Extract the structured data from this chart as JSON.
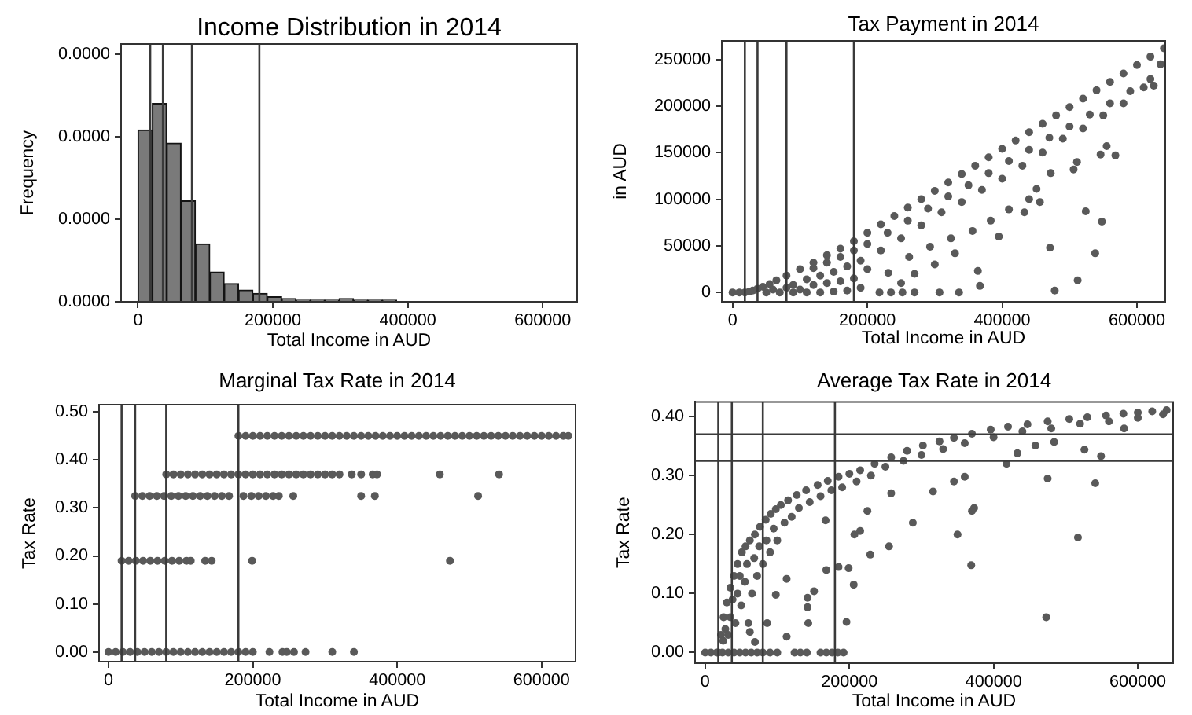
{
  "chart_data": [
    {
      "type": "histogram",
      "title": "Income Distribution in 2014",
      "xlabel": "Total Income in AUD",
      "ylabel": "Frequency",
      "color": "#7a7a7a",
      "bins": [
        0,
        21300,
        42600,
        63900,
        85200,
        106500,
        127800,
        149100,
        170400,
        191700,
        213000,
        234300,
        255600,
        276900,
        298200,
        319500,
        340800,
        362100,
        383400,
        404700,
        426000,
        447300,
        468600,
        489900,
        511200,
        532500,
        553800,
        575100,
        596400,
        617700,
        639000
      ],
      "values": [
        1.04e-05,
        1.2e-05,
        9.6e-06,
        6.1e-06,
        3.5e-06,
        1.8e-06,
        1.1e-06,
        7e-07,
        5e-07,
        3e-07,
        2e-07,
        1e-07,
        1e-07,
        1e-07,
        2e-07,
        1e-07,
        1e-07,
        1e-07,
        0,
        0,
        0,
        0,
        0,
        0,
        0,
        0,
        0,
        0,
        0,
        0
      ],
      "xlim": [
        -25000,
        651000
      ],
      "ylim": [
        0,
        1.56e-05
      ],
      "xticks": [
        0,
        200000,
        400000,
        600000
      ],
      "yticks": [
        {
          "value": 0,
          "label": "0.0000"
        },
        {
          "value": 5e-06,
          "label": "0.0000"
        },
        {
          "value": 1e-05,
          "label": "0.0000"
        },
        {
          "value": 1.5e-05,
          "label": "0.0000"
        }
      ],
      "ref_lines": [
        {
          "axis": "x",
          "value": 18200,
          "color": "#3a3a3a"
        },
        {
          "axis": "x",
          "value": 37000,
          "color": "#3a3a3a"
        },
        {
          "axis": "x",
          "value": 80000,
          "color": "#3a3a3a"
        },
        {
          "axis": "x",
          "value": 180000,
          "color": "#3a3a3a"
        }
      ]
    },
    {
      "type": "scatter",
      "title": "Tax Payment in 2014",
      "xlabel": "Total Income in AUD",
      "ylabel": "in AUD",
      "color": "#595959",
      "marker": "circle",
      "x": [
        0,
        10000,
        18200,
        25000,
        30000,
        37000,
        45000,
        55000,
        65000,
        80000,
        100000,
        120000,
        140000,
        160000,
        180000,
        200000,
        220000,
        240000,
        260000,
        280000,
        300000,
        320000,
        340000,
        360000,
        380000,
        400000,
        420000,
        440000,
        460000,
        480000,
        500000,
        520000,
        540000,
        560000,
        580000,
        600000,
        620000,
        640000,
        120000,
        140000,
        160000,
        180000,
        200000,
        230000,
        260000,
        290000,
        320000,
        350000,
        380000,
        410000,
        440000,
        470000,
        500000,
        530000,
        560000,
        590000,
        620000,
        635000,
        90000,
        110000,
        130000,
        150000,
        170000,
        190000,
        220000,
        250000,
        280000,
        310000,
        340000,
        370000,
        400000,
        430000,
        460000,
        490000,
        520000,
        550000,
        580000,
        610000,
        60000,
        80000,
        100000,
        120000,
        140000,
        160000,
        180000,
        200000,
        190000,
        170000,
        150000,
        130000,
        110000,
        90000,
        70000,
        50000,
        218000,
        235000,
        252000,
        270000,
        307000,
        336000,
        231000,
        262000,
        293000,
        324000,
        356000,
        383000,
        410000,
        440000,
        471000,
        478000,
        512000,
        524000,
        548000,
        538000,
        555000,
        546000,
        568000,
        625000,
        511000,
        506000,
        451000,
        456000,
        472000,
        433000,
        364000,
        367000,
        395000,
        300000,
        330000,
        270000,
        250000
      ],
      "values": [
        0,
        0,
        0,
        1000,
        2000,
        4000,
        6000,
        9000,
        13000,
        18000,
        25000,
        32000,
        40000,
        47000,
        55000,
        64000,
        73000,
        82000,
        91000,
        100000,
        109000,
        118000,
        127000,
        136000,
        145000,
        154000,
        163000,
        172000,
        181000,
        190000,
        199000,
        208000,
        217000,
        226000,
        235000,
        244000,
        253000,
        262000,
        26000,
        32000,
        38000,
        45000,
        52000,
        64000,
        77000,
        90000,
        103000,
        115000,
        128000,
        141000,
        153000,
        166000,
        178000,
        191000,
        203000,
        216000,
        229000,
        245000,
        8000,
        14000,
        18000,
        22000,
        28000,
        34000,
        45000,
        58000,
        72000,
        86000,
        97000,
        110000,
        122000,
        136000,
        150000,
        165000,
        176000,
        190000,
        203000,
        220000,
        3000,
        5000,
        3000,
        8000,
        10000,
        12000,
        15000,
        25000,
        5000,
        2000,
        1000,
        0,
        0,
        0,
        0,
        0,
        0,
        0,
        0,
        0,
        0,
        0,
        21000,
        38000,
        49000,
        58000,
        66000,
        77000,
        89000,
        100000,
        48000,
        2000,
        13000,
        87000,
        76000,
        42000,
        157000,
        148000,
        147000,
        222000,
        140000,
        132000,
        111000,
        97000,
        128000,
        86000,
        23000,
        7000,
        60000,
        30000,
        42000,
        20000,
        10000
      ],
      "xlim": [
        -16000,
        642000
      ],
      "ylim": [
        -10000,
        270000
      ],
      "xticks": [
        0,
        200000,
        400000,
        600000
      ],
      "yticks": [
        0,
        50000,
        100000,
        150000,
        200000,
        250000
      ],
      "ref_lines": [
        {
          "axis": "x",
          "value": 18200,
          "color": "#3a3a3a"
        },
        {
          "axis": "x",
          "value": 37000,
          "color": "#3a3a3a"
        },
        {
          "axis": "x",
          "value": 80000,
          "color": "#3a3a3a"
        },
        {
          "axis": "x",
          "value": 180000,
          "color": "#3a3a3a"
        }
      ]
    },
    {
      "type": "scatter",
      "title": "Marginal Tax Rate in 2014",
      "xlabel": "Total Income in AUD",
      "ylabel": "Tax Rate",
      "color": "#595959",
      "marker": "circle",
      "x": [
        0,
        10000,
        20000,
        30000,
        40000,
        50000,
        60000,
        70000,
        80000,
        90000,
        100000,
        110000,
        120000,
        130000,
        140000,
        150000,
        160000,
        170000,
        180000,
        190000,
        200000,
        223000,
        241000,
        247000,
        257000,
        273000,
        310000,
        340000,
        18200,
        28000,
        38000,
        48000,
        58000,
        68000,
        78000,
        88000,
        98000,
        108000,
        114000,
        134000,
        143000,
        199000,
        473000,
        37000,
        47000,
        57000,
        67000,
        77000,
        87000,
        97000,
        107000,
        117000,
        127000,
        137000,
        147000,
        157000,
        167000,
        187000,
        198000,
        208000,
        218000,
        228000,
        236000,
        256000,
        350000,
        369000,
        512000,
        80000,
        90000,
        100000,
        110000,
        120000,
        130000,
        140000,
        150000,
        160000,
        170000,
        180000,
        190000,
        200000,
        210000,
        220000,
        230000,
        240000,
        250000,
        260000,
        270000,
        280000,
        290000,
        300000,
        310000,
        320000,
        337000,
        350000,
        366000,
        372000,
        459000,
        541000,
        180000,
        190000,
        200000,
        210000,
        220000,
        230000,
        240000,
        250000,
        260000,
        270000,
        280000,
        290000,
        300000,
        310000,
        320000,
        330000,
        340000,
        350000,
        360000,
        370000,
        380000,
        390000,
        400000,
        410000,
        420000,
        430000,
        440000,
        450000,
        460000,
        470000,
        480000,
        490000,
        500000,
        510000,
        520000,
        530000,
        540000,
        550000,
        560000,
        570000,
        580000,
        590000,
        600000,
        610000,
        620000,
        630000,
        637000
      ],
      "values": [
        0,
        0,
        0,
        0,
        0,
        0,
        0,
        0,
        0,
        0,
        0,
        0,
        0,
        0,
        0,
        0,
        0,
        0,
        0,
        0,
        0,
        0,
        0,
        0,
        0,
        0,
        0,
        0,
        0.19,
        0.19,
        0.19,
        0.19,
        0.19,
        0.19,
        0.19,
        0.19,
        0.19,
        0.19,
        0.19,
        0.19,
        0.19,
        0.19,
        0.19,
        0.325,
        0.325,
        0.325,
        0.325,
        0.325,
        0.325,
        0.325,
        0.325,
        0.325,
        0.325,
        0.325,
        0.325,
        0.325,
        0.325,
        0.325,
        0.325,
        0.325,
        0.325,
        0.325,
        0.325,
        0.325,
        0.325,
        0.325,
        0.325,
        0.37,
        0.37,
        0.37,
        0.37,
        0.37,
        0.37,
        0.37,
        0.37,
        0.37,
        0.37,
        0.37,
        0.37,
        0.37,
        0.37,
        0.37,
        0.37,
        0.37,
        0.37,
        0.37,
        0.37,
        0.37,
        0.37,
        0.37,
        0.37,
        0.37,
        0.37,
        0.37,
        0.37,
        0.37,
        0.37,
        0.37,
        0.45,
        0.45,
        0.45,
        0.45,
        0.45,
        0.45,
        0.45,
        0.45,
        0.45,
        0.45,
        0.45,
        0.45,
        0.45,
        0.45,
        0.45,
        0.45,
        0.45,
        0.45,
        0.45,
        0.45,
        0.45,
        0.45,
        0.45,
        0.45,
        0.45,
        0.45,
        0.45,
        0.45,
        0.45,
        0.45,
        0.45,
        0.45,
        0.45,
        0.45,
        0.45,
        0.45,
        0.45,
        0.45,
        0.45,
        0.45,
        0.45,
        0.45,
        0.45,
        0.45,
        0.45,
        0.45,
        0.45
      ],
      "xlim": [
        -13000,
        647000
      ],
      "ylim": [
        -0.02,
        0.515
      ],
      "xticks": [
        0,
        200000,
        400000,
        600000
      ],
      "yticks": [
        {
          "value": 0,
          "label": "0.00"
        },
        {
          "value": 0.1,
          "label": "0.10"
        },
        {
          "value": 0.2,
          "label": "0.20"
        },
        {
          "value": 0.3,
          "label": "0.30"
        },
        {
          "value": 0.4,
          "label": "0.40"
        },
        {
          "value": 0.5,
          "label": "0.50"
        }
      ],
      "ref_lines": [
        {
          "axis": "x",
          "value": 18200,
          "color": "#3a3a3a"
        },
        {
          "axis": "x",
          "value": 37000,
          "color": "#3a3a3a"
        },
        {
          "axis": "x",
          "value": 80000,
          "color": "#3a3a3a"
        },
        {
          "axis": "x",
          "value": 180000,
          "color": "#3a3a3a"
        }
      ]
    },
    {
      "type": "scatter",
      "title": "Average Tax Rate in 2014",
      "xlabel": "Total Income in AUD",
      "ylabel": "Tax Rate",
      "color": "#595959",
      "marker": "circle",
      "x": [
        18200,
        22000,
        25500,
        30000,
        35000,
        40000,
        45000,
        51000,
        56000,
        62000,
        69000,
        76000,
        84000,
        91000,
        98000,
        105000,
        115000,
        127000,
        140000,
        156000,
        170000,
        185000,
        200000,
        215000,
        235000,
        258000,
        280000,
        302000,
        325000,
        345000,
        370000,
        396000,
        420000,
        447000,
        475000,
        505000,
        530000,
        556000,
        580000,
        600000,
        620000,
        640000,
        25000,
        28000,
        32000,
        35000,
        38000,
        42000,
        45000,
        48000,
        50000,
        55000,
        58000,
        60000,
        65000,
        68000,
        72000,
        75000,
        80000,
        85000,
        90000,
        95000,
        100000,
        110000,
        120000,
        130000,
        145000,
        160000,
        175000,
        190000,
        210000,
        230000,
        250000,
        275000,
        300000,
        330000,
        360000,
        400000,
        440000,
        480000,
        520000,
        560000,
        600000,
        635000,
        0,
        8000,
        16000,
        24000,
        32000,
        40000,
        48000,
        56000,
        64000,
        72000,
        80000,
        90000,
        100000,
        124000,
        132000,
        141000,
        160000,
        168000,
        176000,
        184000,
        192000,
        473000,
        517000,
        541000,
        549000,
        526000,
        475000,
        369000,
        350000,
        370000,
        373000,
        288000,
        255000,
        229000,
        196000,
        206000,
        199000,
        185000,
        168000,
        151000,
        142000,
        142000,
        143000,
        167000,
        207000,
        215000,
        225000,
        258000,
        316000,
        345000,
        360000,
        418000,
        433000,
        458000,
        484000,
        581000,
        113000,
        98000,
        113000,
        86000,
        69000,
        62000
      ],
      "values": [
        0,
        0.03,
        0.06,
        0.085,
        0.11,
        0.13,
        0.15,
        0.17,
        0.18,
        0.19,
        0.2,
        0.213,
        0.225,
        0.235,
        0.243,
        0.25,
        0.258,
        0.267,
        0.275,
        0.284,
        0.291,
        0.298,
        0.303,
        0.309,
        0.32,
        0.331,
        0.342,
        0.351,
        0.358,
        0.364,
        0.371,
        0.378,
        0.383,
        0.387,
        0.392,
        0.396,
        0.399,
        0.402,
        0.405,
        0.407,
        0.409,
        0.411,
        0.02,
        0.04,
        0.03,
        0.06,
        0.09,
        0.05,
        0.1,
        0.13,
        0.08,
        0.12,
        0.15,
        0.05,
        0.1,
        0.16,
        0.13,
        0.18,
        0.15,
        0.19,
        0.17,
        0.21,
        0.19,
        0.22,
        0.23,
        0.245,
        0.255,
        0.265,
        0.275,
        0.28,
        0.29,
        0.3,
        0.315,
        0.325,
        0.335,
        0.345,
        0.355,
        0.365,
        0.375,
        0.38,
        0.388,
        0.392,
        0.398,
        0.404,
        0,
        0,
        0,
        0,
        0,
        0,
        0,
        0,
        0,
        0,
        0,
        0,
        0,
        0,
        0,
        0,
        0,
        0,
        0,
        0,
        0,
        0.06,
        0.195,
        0.287,
        0.333,
        0.344,
        0.295,
        0.148,
        0.2,
        0.24,
        0.245,
        0.22,
        0.18,
        0.166,
        0.052,
        0.115,
        0.143,
        0.145,
        0.14,
        0.104,
        0.093,
        0.077,
        0.05,
        0.224,
        0.2,
        0.206,
        0.24,
        0.27,
        0.273,
        0.29,
        0.298,
        0.32,
        0.338,
        0.351,
        0.357,
        0.38,
        0.125,
        0.098,
        0.027,
        0.05,
        0.018,
        0.035
      ],
      "xlim": [
        -14000,
        649000
      ],
      "ylim": [
        -0.018,
        0.425
      ],
      "xticks": [
        0,
        200000,
        400000,
        600000
      ],
      "yticks": [
        {
          "value": 0,
          "label": "0.00"
        },
        {
          "value": 0.1,
          "label": "0.10"
        },
        {
          "value": 0.2,
          "label": "0.20"
        },
        {
          "value": 0.3,
          "label": "0.30"
        },
        {
          "value": 0.4,
          "label": "0.40"
        }
      ],
      "ref_lines": [
        {
          "axis": "x",
          "value": 18200,
          "color": "#3a3a3a"
        },
        {
          "axis": "x",
          "value": 37000,
          "color": "#3a3a3a"
        },
        {
          "axis": "x",
          "value": 80000,
          "color": "#3a3a3a"
        },
        {
          "axis": "x",
          "value": 180000,
          "color": "#3a3a3a"
        },
        {
          "axis": "y",
          "value": 0.325,
          "color": "#3a3a3a"
        },
        {
          "axis": "y",
          "value": 0.37,
          "color": "#3a3a3a"
        }
      ]
    }
  ]
}
